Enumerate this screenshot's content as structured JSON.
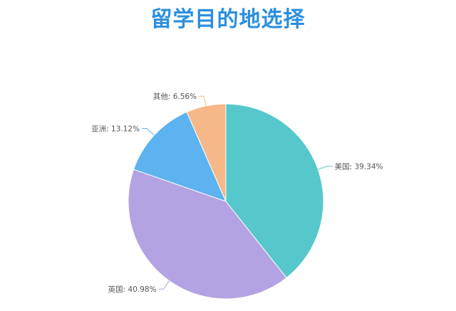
{
  "chart_data": {
    "type": "pie",
    "title": "留学目的地选择",
    "slices": [
      {
        "label": "美国",
        "value": 39.34,
        "display": "美国: 39.34%",
        "color": "#56c8cc"
      },
      {
        "label": "英国",
        "value": 40.98,
        "display": "英国: 40.98%",
        "color": "#b4a3e2"
      },
      {
        "label": "亚洲",
        "value": 13.12,
        "display": "亚洲: 13.12%",
        "color": "#5cb3f0"
      },
      {
        "label": "其他",
        "value": 6.56,
        "display": "其他: 6.56%",
        "color": "#f6b888"
      }
    ],
    "legend": "none",
    "start_angle_deg": 0,
    "direction": "clockwise"
  }
}
